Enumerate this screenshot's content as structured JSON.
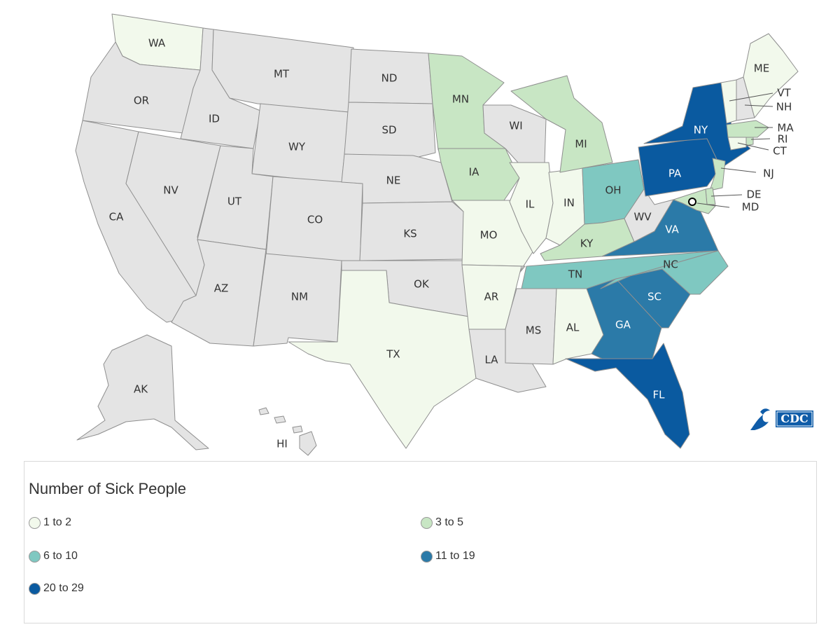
{
  "legend": {
    "title": "Number of Sick People",
    "items": [
      {
        "label": "1 to 2",
        "color": "#f2f9ec"
      },
      {
        "label": "3 to 5",
        "color": "#c8e6c4"
      },
      {
        "label": "6 to 10",
        "color": "#7fc8c1"
      },
      {
        "label": "11 to 19",
        "color": "#2b7aa8"
      },
      {
        "label": "20 to 29",
        "color": "#0a5aa0"
      }
    ]
  },
  "colors": {
    "none": "#e4e4e4",
    "c1": "#f2f9ec",
    "c2": "#c8e6c4",
    "c3": "#7fc8c1",
    "c4": "#2b7aa8",
    "c5": "#0a5aa0"
  },
  "logo": {
    "text": "CDC",
    "icon": "cdc-eagle-icon"
  },
  "states": [
    {
      "abbr": "WA",
      "cat": 1
    },
    {
      "abbr": "OR",
      "cat": 0
    },
    {
      "abbr": "CA",
      "cat": 0
    },
    {
      "abbr": "ID",
      "cat": 0
    },
    {
      "abbr": "NV",
      "cat": 0
    },
    {
      "abbr": "MT",
      "cat": 0
    },
    {
      "abbr": "WY",
      "cat": 0
    },
    {
      "abbr": "UT",
      "cat": 0
    },
    {
      "abbr": "AZ",
      "cat": 0
    },
    {
      "abbr": "CO",
      "cat": 0
    },
    {
      "abbr": "NM",
      "cat": 0
    },
    {
      "abbr": "ND",
      "cat": 0
    },
    {
      "abbr": "SD",
      "cat": 0
    },
    {
      "abbr": "NE",
      "cat": 0
    },
    {
      "abbr": "KS",
      "cat": 0
    },
    {
      "abbr": "OK",
      "cat": 0
    },
    {
      "abbr": "TX",
      "cat": 1
    },
    {
      "abbr": "MN",
      "cat": 2
    },
    {
      "abbr": "IA",
      "cat": 2
    },
    {
      "abbr": "MO",
      "cat": 1
    },
    {
      "abbr": "AR",
      "cat": 1
    },
    {
      "abbr": "LA",
      "cat": 0
    },
    {
      "abbr": "WI",
      "cat": 0
    },
    {
      "abbr": "IL",
      "cat": 1
    },
    {
      "abbr": "IN",
      "cat": 1
    },
    {
      "abbr": "MI",
      "cat": 2
    },
    {
      "abbr": "OH",
      "cat": 3
    },
    {
      "abbr": "KY",
      "cat": 2
    },
    {
      "abbr": "TN",
      "cat": 3
    },
    {
      "abbr": "MS",
      "cat": 0
    },
    {
      "abbr": "AL",
      "cat": 1
    },
    {
      "abbr": "GA",
      "cat": 4
    },
    {
      "abbr": "FL",
      "cat": 5
    },
    {
      "abbr": "SC",
      "cat": 4
    },
    {
      "abbr": "NC",
      "cat": 3
    },
    {
      "abbr": "VA",
      "cat": 4
    },
    {
      "abbr": "WV",
      "cat": 0
    },
    {
      "abbr": "PA",
      "cat": 5
    },
    {
      "abbr": "NY",
      "cat": 5
    },
    {
      "abbr": "NJ",
      "cat": 2
    },
    {
      "abbr": "DE",
      "cat": 2
    },
    {
      "abbr": "MD",
      "cat": 2
    },
    {
      "abbr": "CT",
      "cat": 1
    },
    {
      "abbr": "RI",
      "cat": 2
    },
    {
      "abbr": "MA",
      "cat": 2
    },
    {
      "abbr": "VT",
      "cat": 1
    },
    {
      "abbr": "NH",
      "cat": 0
    },
    {
      "abbr": "ME",
      "cat": 1
    },
    {
      "abbr": "AK",
      "cat": 0
    },
    {
      "abbr": "HI",
      "cat": 0
    }
  ]
}
